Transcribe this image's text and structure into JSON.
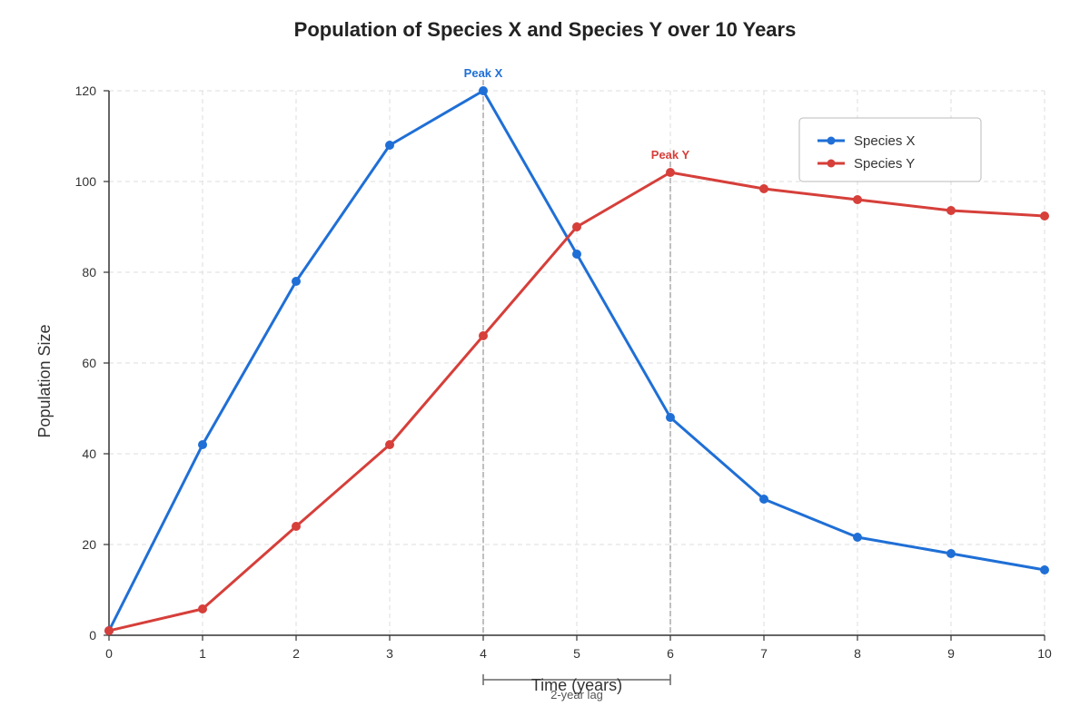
{
  "chart_data": {
    "type": "line",
    "title": "Population of Species X and Species Y over 10 Years",
    "xlabel": "Time (years)",
    "ylabel": "Population Size",
    "x": [
      0,
      1,
      2,
      3,
      4,
      5,
      6,
      7,
      8,
      9,
      10
    ],
    "xlim": [
      0,
      10
    ],
    "ylim": [
      0,
      120
    ],
    "x_ticks": [
      0,
      1,
      2,
      3,
      4,
      5,
      6,
      7,
      8,
      9,
      10
    ],
    "y_ticks": [
      0,
      20,
      40,
      60,
      80,
      100,
      120
    ],
    "grid": true,
    "legend_position": "top-right",
    "series": [
      {
        "name": "Species X",
        "color": "#1f6fd6",
        "values": [
          1,
          42,
          78,
          108,
          120,
          84,
          48,
          30,
          21.6,
          18,
          14.4
        ]
      },
      {
        "name": "Species Y",
        "color": "#d63f3a",
        "values": [
          1,
          5.8,
          24,
          42,
          66,
          90,
          102,
          98.4,
          96,
          93.6,
          92.4
        ]
      }
    ],
    "annotations": [
      {
        "text": "Peak X",
        "x": 4,
        "y": 120,
        "series": 0
      },
      {
        "text": "Peak Y",
        "x": 6,
        "y": 102,
        "series": 1
      }
    ],
    "lag": {
      "text": "2-year lag",
      "from": 4,
      "to": 6
    }
  }
}
